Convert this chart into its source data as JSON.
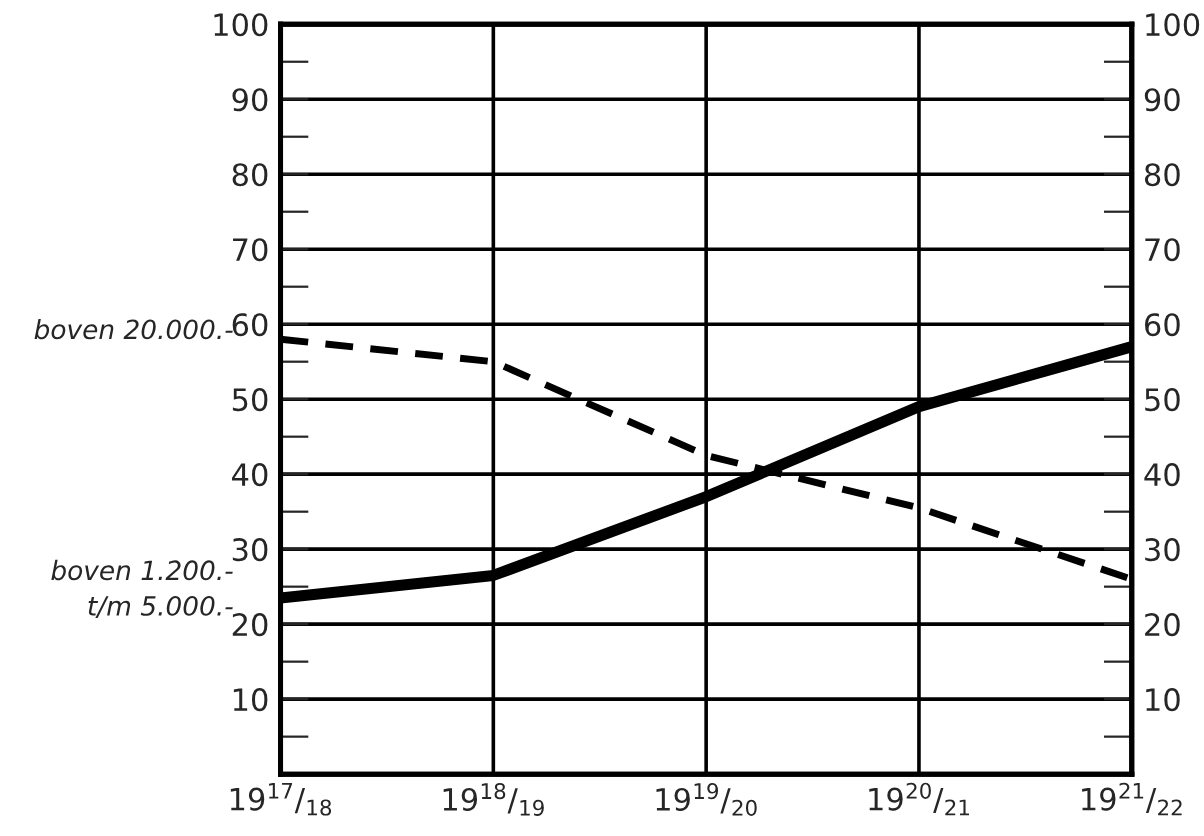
{
  "chart_data": {
    "type": "line",
    "categories": [
      "19$^{17}$/$_{18}$",
      "19$^{18}$/$_{19}$",
      "19$^{19}$/$_{20}$",
      "19$^{20}$/$_{21}$",
      "19$^{21}$/$_{22}$"
    ],
    "series": [
      {
        "name": "boven 1.200.-\nt/m 5.000.-",
        "color": "#000000",
        "line_style": "solid",
        "values": [
          23.5,
          26.5,
          37,
          49,
          57
        ]
      },
      {
        "name": "boven 20.000.-",
        "color": "#000000",
        "line_style": "dashed",
        "values": [
          58,
          55,
          42.5,
          35.5,
          26
        ]
      }
    ],
    "ylim": [
      0,
      100
    ],
    "yticks": [
      {
        "value": 5,
        "label": null
      },
      10,
      {
        "value": 15,
        "label": null
      },
      20,
      {
        "value": 25,
        "label": null
      },
      30,
      {
        "value": 35,
        "label": null
      },
      40,
      {
        "value": 45,
        "label": null
      },
      50,
      {
        "value": 55,
        "label": null
      },
      60,
      {
        "value": 65,
        "label": null
      },
      70,
      {
        "value": 75,
        "label": null
      },
      80,
      {
        "value": 85,
        "label": null
      },
      90,
      {
        "value": 95,
        "label": null
      },
      100
    ],
    "y2lim": [
      0,
      100
    ],
    "y2ticks": [
      {
        "value": 5,
        "label": null
      },
      10,
      {
        "value": 15,
        "label": null
      },
      20,
      {
        "value": 25,
        "label": null
      },
      30,
      {
        "value": 35,
        "label": null
      },
      40,
      {
        "value": 45,
        "label": null
      },
      50,
      {
        "value": 55,
        "label": null
      },
      60,
      {
        "value": 65,
        "label": null
      },
      70,
      {
        "value": 75,
        "label": null
      },
      80,
      {
        "value": 85,
        "label": null
      },
      90,
      {
        "value": 95,
        "label": null
      },
      100
    ],
    "grid": true,
    "legend": false,
    "marker": "none"
  }
}
